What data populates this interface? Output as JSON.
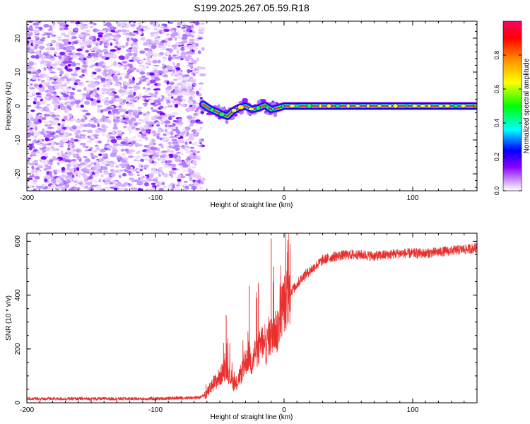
{
  "title": "S199.2025.267.05.59.R18",
  "colors": {
    "snr_line": "#e8302e",
    "spec_bg": "#ffffff",
    "axis": "#000000"
  },
  "chart_data": [
    {
      "type": "heatmap",
      "title": "S199.2025.267.05.59.R18",
      "xlabel": "Height of straight line (km)",
      "ylabel": "Frequency (Hz)",
      "xlim": [
        -200,
        150
      ],
      "ylim": [
        -25,
        25
      ],
      "xticks": [
        "-200",
        "-100",
        "0",
        "100"
      ],
      "xtick_values": [
        -200,
        -100,
        0,
        100
      ],
      "yticks": [
        "-20",
        "-10",
        "0",
        "10",
        "20"
      ],
      "ytick_values": [
        -20,
        -10,
        0,
        10,
        20
      ],
      "noise_region_km": [
        -200,
        -63
      ],
      "carrier_line": {
        "comment": "frequency of detected carrier vs height",
        "x": [
          -63,
          -58,
          -52,
          -48,
          -44,
          -40,
          -35,
          -30,
          -25,
          -20,
          -15,
          -10,
          -5,
          0,
          10,
          20,
          40,
          60,
          80,
          100,
          120,
          150
        ],
        "y": [
          0.5,
          -0.8,
          -1.8,
          -2.5,
          -3.0,
          -1.5,
          -0.5,
          0.0,
          -1.0,
          -0.6,
          0.2,
          -1.0,
          -0.6,
          0.0,
          0.0,
          0.0,
          0.0,
          0.0,
          0.0,
          0.0,
          0.0,
          0.0
        ]
      },
      "colorbar": {
        "label": "Normalized spectral amplitude",
        "range": [
          0.0,
          1.0
        ],
        "ticks": [
          "0.0",
          "0.2",
          "0.4",
          "0.6",
          "0.8"
        ],
        "tick_values": [
          0.0,
          0.2,
          0.4,
          0.6,
          0.8
        ],
        "colors": [
          "#ffffff",
          "#cc99ff",
          "#8800ff",
          "#0000ff",
          "#00ffff",
          "#00ff00",
          "#ffff00",
          "#ff8800",
          "#ff0000",
          "#ff0066"
        ]
      }
    },
    {
      "type": "line",
      "title": "",
      "xlabel": "Height of straight line (km)",
      "ylabel": "SNR (10 * v/v)",
      "xlim": [
        -200,
        150
      ],
      "ylim": [
        0,
        630
      ],
      "xticks": [
        "-200",
        "-100",
        "0",
        "100"
      ],
      "xtick_values": [
        -200,
        -100,
        0,
        100
      ],
      "yticks": [
        "0",
        "200",
        "400",
        "600"
      ],
      "ytick_values": [
        0,
        200,
        400,
        600
      ],
      "series": [
        {
          "name": "SNR",
          "x": [
            -200,
            -150,
            -100,
            -80,
            -65,
            -60,
            -55,
            -50,
            -47,
            -45,
            -42,
            -38,
            -35,
            -30,
            -27,
            -25,
            -22,
            -20,
            -17,
            -15,
            -12,
            -10,
            -8,
            -5,
            -3,
            0,
            5,
            10,
            15,
            20,
            25,
            30,
            40,
            50,
            60,
            70,
            80,
            90,
            100,
            110,
            120,
            130,
            140,
            150
          ],
          "y": [
            15,
            15,
            15,
            18,
            20,
            35,
            70,
            95,
            120,
            130,
            100,
            60,
            90,
            150,
            180,
            140,
            200,
            190,
            230,
            180,
            250,
            240,
            280,
            260,
            330,
            370,
            410,
            440,
            470,
            490,
            510,
            530,
            545,
            550,
            550,
            545,
            550,
            555,
            555,
            555,
            560,
            565,
            570,
            575
          ]
        }
      ],
      "spikes": {
        "x": [
          -45,
          -27,
          -20,
          -10,
          -8
        ],
        "y": [
          325,
          435,
          445,
          610,
          505
        ]
      }
    }
  ]
}
